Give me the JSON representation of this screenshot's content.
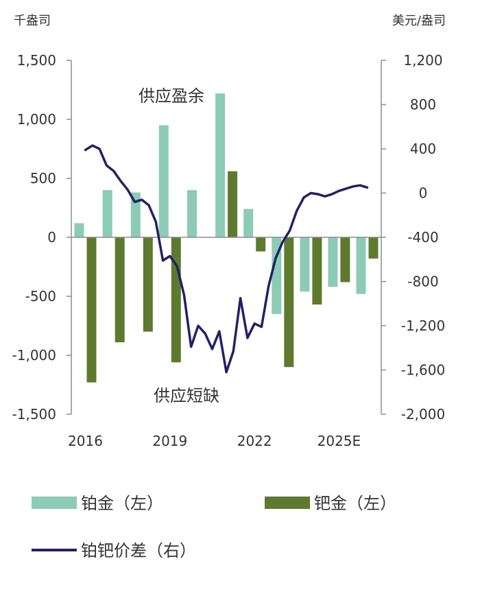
{
  "chart_data": {
    "type": "bar",
    "units": {
      "left": "千盎司",
      "right": "美元/盎司"
    },
    "x_ticks": [
      "2016",
      "2019",
      "2022",
      "2025E"
    ],
    "categories": [
      "2016",
      "2017",
      "2018",
      "2019",
      "2020",
      "2021",
      "2022",
      "2023",
      "2024",
      "2025E",
      "2026E"
    ],
    "series": [
      {
        "name": "铂金（左）",
        "axis": "left",
        "kind": "bar",
        "color": "#8ccbb5",
        "values": [
          120,
          400,
          380,
          950,
          400,
          1220,
          240,
          -650,
          -460,
          -420,
          -480
        ]
      },
      {
        "name": "钯金（左）",
        "axis": "left",
        "kind": "bar",
        "color": "#5d7a2e",
        "values": [
          -1230,
          -890,
          -800,
          -1060,
          0,
          560,
          -120,
          -1100,
          -570,
          -380,
          -180
        ]
      },
      {
        "name": "铂钯价差（右）",
        "axis": "right",
        "kind": "line",
        "color": "#231f66",
        "x": [
          0,
          0.25,
          0.5,
          0.75,
          1.0,
          1.25,
          1.5,
          1.75,
          2.0,
          2.25,
          2.5,
          2.75,
          3.0,
          3.25,
          3.5,
          3.75,
          4.0,
          4.25,
          4.5,
          4.75,
          5.0,
          5.25,
          5.5,
          5.75,
          6.0,
          6.25,
          6.5,
          6.75,
          7.0,
          7.25,
          7.5,
          7.75,
          8.0,
          8.25,
          8.5,
          8.75,
          9.0,
          9.25,
          9.5,
          9.75,
          10.0
        ],
        "values": [
          390,
          430,
          400,
          250,
          200,
          110,
          30,
          -80,
          -60,
          -110,
          -260,
          -610,
          -570,
          -660,
          -920,
          -1390,
          -1200,
          -1270,
          -1410,
          -1250,
          -1620,
          -1430,
          -950,
          -1310,
          -1180,
          -1210,
          -840,
          -590,
          -440,
          -340,
          -160,
          -40,
          0,
          -10,
          -30,
          -10,
          20,
          40,
          60,
          70,
          50
        ]
      }
    ],
    "ylim_left": [
      -1500,
      1500
    ],
    "yticks_left": [
      "1,500",
      "1,000",
      "500",
      "0",
      "-500",
      "-1,000",
      "-1,500"
    ],
    "ylim_right": [
      -2000,
      1200
    ],
    "yticks_right": [
      "1,200",
      "800",
      "400",
      "0",
      "-400",
      "-800",
      "-1,200",
      "-1,600",
      "-2,000"
    ],
    "annotations": [
      "供应盈余",
      "供应短缺"
    ],
    "legend": [
      "铂金（左）",
      "钯金（左）",
      "铂钯价差（右）"
    ],
    "legend_position": "bottom",
    "grid": false
  }
}
